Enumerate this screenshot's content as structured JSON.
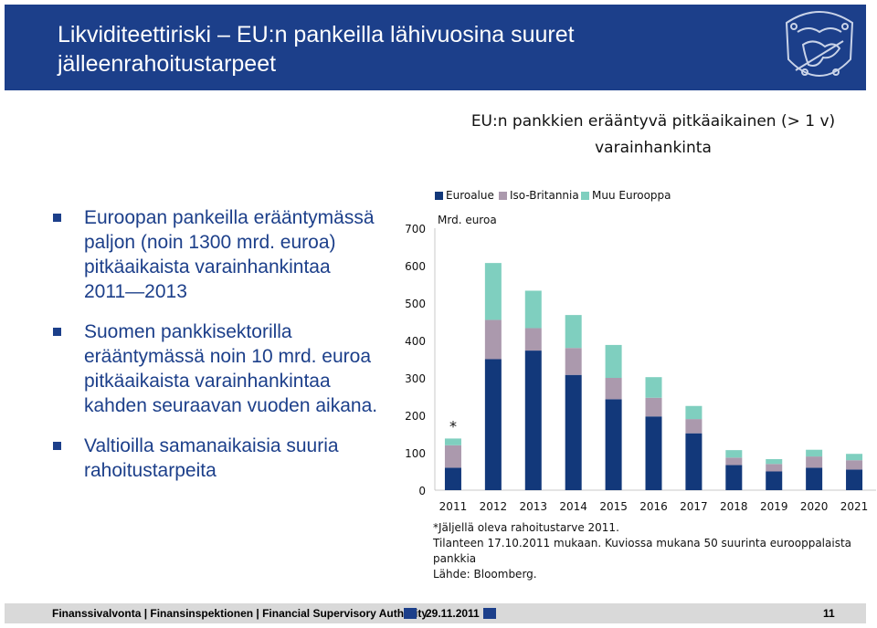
{
  "header": {
    "title_line1": "Likviditeettiriski – EU:n pankeilla lähivuosina suuret",
    "title_line2": "jälleenrahoitustarpeet",
    "emblem_icon": "lion-coat-of-arms-icon"
  },
  "chart_title": {
    "line1": "EU:n pankkien erääntyvä pitkäaikainen (> 1 v)",
    "line2": "varainhankinta"
  },
  "bullets": [
    {
      "text": "Euroopan pankeilla erääntymässä paljon (noin 1300 mrd. euroa) pitkäaikaista varainhankintaa 2011―2013"
    },
    {
      "text": "Suomen pankkisektorilla erääntymässä noin 10 mrd. euroa pitkäaikaista varainhankintaa kahden seuraavan vuoden aikana."
    },
    {
      "text": "Valtioilla samanaikaisia suuria rahoitustarpeita"
    }
  ],
  "chart_data": {
    "type": "bar",
    "stacked": true,
    "ylabel": "Mrd. euroa",
    "ylim": [
      0,
      700
    ],
    "yticks": [
      0,
      100,
      200,
      300,
      400,
      500,
      600,
      700
    ],
    "grid": false,
    "legend_position": "top",
    "categories": [
      "2011",
      "2012",
      "2013",
      "2014",
      "2015",
      "2016",
      "2017",
      "2018",
      "2019",
      "2020",
      "2021"
    ],
    "series": [
      {
        "name": "Euroalue",
        "color": "#12387a",
        "values": [
          60,
          350,
          373,
          308,
          243,
          197,
          152,
          67,
          50,
          60,
          55
        ]
      },
      {
        "name": "Iso-Britannia",
        "color": "#ab99ad",
        "values": [
          60,
          105,
          60,
          72,
          57,
          50,
          38,
          20,
          20,
          30,
          25
        ]
      },
      {
        "name": "Muu Eurooppa",
        "color": "#7fcfbf",
        "values": [
          18,
          152,
          100,
          88,
          88,
          55,
          35,
          20,
          13,
          18,
          17
        ]
      }
    ],
    "annotation": {
      "text": "*",
      "category": "2011"
    }
  },
  "footnotes": {
    "line1": "*Jäljellä oleva rahoitustarve 2011.",
    "line2": "Tilanteen 17.10.2011 mukaan. Kuviossa mukana 50 suurinta eurooppalaista pankkia",
    "line3": "Lähde: Bloomberg."
  },
  "footer": {
    "text": "Finanssivalvonta | Finansinspektionen | Financial Supervisory Authority",
    "date": "29.11.2011",
    "page": "11"
  }
}
